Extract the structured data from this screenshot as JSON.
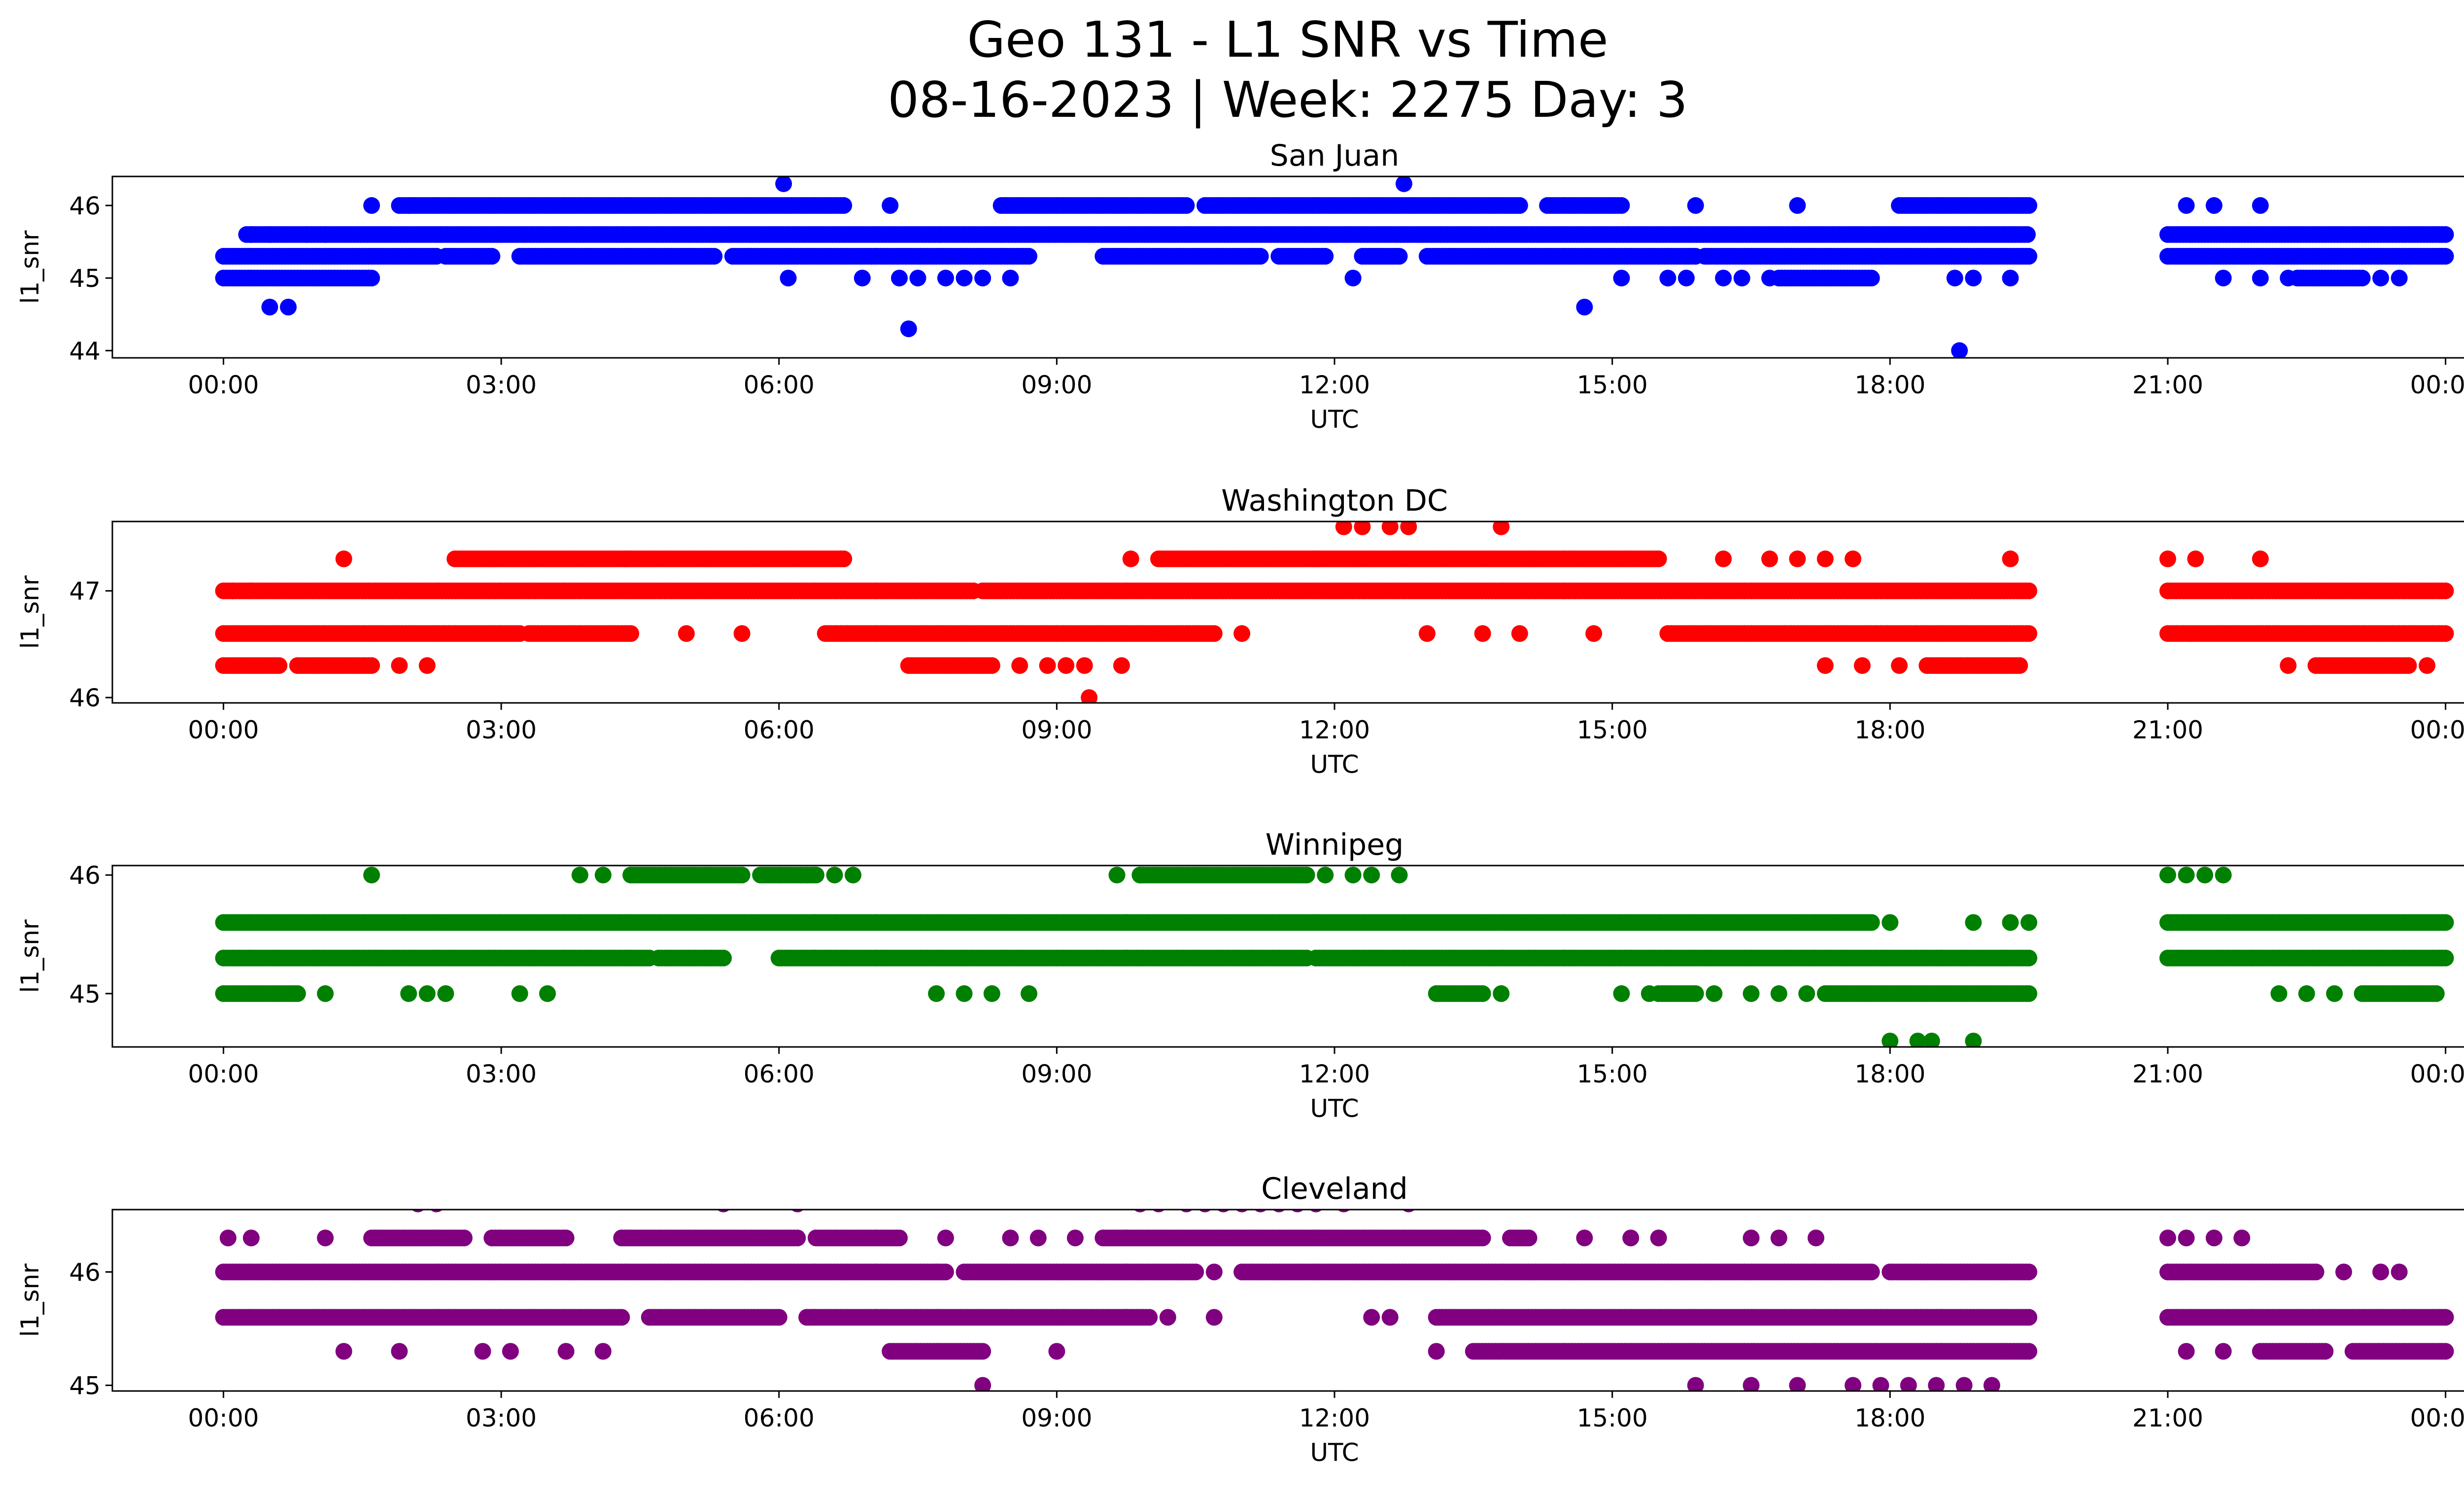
{
  "figure": {
    "title_line1": "Geo 131 - L1 SNR vs Time",
    "title_line2": "08-16-2023 | Week: 2275 Day: 3"
  },
  "chart_data": [
    {
      "type": "scatter",
      "title": "San Juan",
      "xlabel": "UTC",
      "ylabel": "l1_snr",
      "color": "#0000ff",
      "x_ticks": [
        "00:00",
        "03:00",
        "06:00",
        "09:00",
        "12:00",
        "15:00",
        "18:00",
        "21:00",
        "00:00"
      ],
      "y_ticks": [
        44,
        45,
        46
      ],
      "xlim_hours": [
        -1.2,
        25.2
      ],
      "ylim": [
        43.9,
        46.4
      ],
      "bands": [
        {
          "y": 45.6,
          "segments": [
            [
              0.25,
              19.5
            ],
            [
              21.0,
              24.0
            ]
          ],
          "spacing_min": 2
        },
        {
          "y": 45.3,
          "segments": [
            [
              0.0,
              2.3
            ],
            [
              2.4,
              2.9
            ],
            [
              3.2,
              5.3
            ],
            [
              5.5,
              8.7
            ],
            [
              9.5,
              11.2
            ],
            [
              11.4,
              11.9
            ],
            [
              12.3,
              12.7
            ],
            [
              13.0,
              15.9
            ],
            [
              16.0,
              19.5
            ],
            [
              21.0,
              24.0
            ]
          ],
          "spacing_min": 2
        },
        {
          "y": 46.0,
          "segments": [
            [
              1.9,
              6.7
            ],
            [
              8.4,
              10.4
            ],
            [
              10.6,
              14.0
            ],
            [
              14.3,
              15.1
            ],
            [
              18.1,
              19.5
            ]
          ],
          "spacing_min": 2
        },
        {
          "y": 45.0,
          "segments": [
            [
              0.0,
              1.6
            ],
            [
              16.8,
              17.8
            ],
            [
              22.4,
              23.1
            ]
          ],
          "spacing_min": 2
        }
      ],
      "points": [
        [
          0.5,
          44.6
        ],
        [
          0.7,
          44.6
        ],
        [
          1.6,
          46.0
        ],
        [
          2.0,
          46.0
        ],
        [
          6.05,
          46.3
        ],
        [
          12.75,
          46.3
        ],
        [
          7.4,
          44.3
        ],
        [
          14.7,
          44.6
        ],
        [
          18.75,
          44.0
        ],
        [
          6.1,
          45.0
        ],
        [
          6.9,
          45.0
        ],
        [
          7.3,
          45.0
        ],
        [
          7.5,
          45.0
        ],
        [
          7.8,
          45.0
        ],
        [
          8.0,
          45.0
        ],
        [
          8.2,
          45.0
        ],
        [
          8.5,
          45.0
        ],
        [
          12.2,
          45.0
        ],
        [
          15.1,
          45.0
        ],
        [
          15.6,
          45.0
        ],
        [
          15.8,
          45.0
        ],
        [
          16.2,
          45.0
        ],
        [
          16.4,
          45.0
        ],
        [
          16.7,
          45.0
        ],
        [
          18.7,
          45.0
        ],
        [
          18.9,
          45.0
        ],
        [
          19.3,
          45.0
        ],
        [
          21.2,
          46.0
        ],
        [
          21.5,
          46.0
        ],
        [
          22.0,
          46.0
        ],
        [
          21.6,
          45.0
        ],
        [
          22.0,
          45.0
        ],
        [
          22.3,
          45.0
        ],
        [
          23.3,
          45.0
        ],
        [
          23.5,
          45.0
        ],
        [
          15.9,
          46.0
        ],
        [
          17.0,
          46.0
        ],
        [
          7.2,
          46.0
        ],
        [
          0.3,
          45.6
        ],
        [
          0.5,
          45.6
        ],
        [
          0.9,
          45.6
        ],
        [
          1.1,
          45.6
        ]
      ]
    },
    {
      "type": "scatter",
      "title": "Washington DC",
      "xlabel": "UTC",
      "ylabel": "l1_snr",
      "color": "#ff0000",
      "x_ticks": [
        "00:00",
        "03:00",
        "06:00",
        "09:00",
        "12:00",
        "15:00",
        "18:00",
        "21:00",
        "00:00"
      ],
      "y_ticks": [
        46,
        47
      ],
      "xlim_hours": [
        -1.2,
        25.2
      ],
      "ylim": [
        45.95,
        47.65
      ],
      "bands": [
        {
          "y": 47.0,
          "segments": [
            [
              0.0,
              8.1
            ],
            [
              8.2,
              19.5
            ],
            [
              21.0,
              24.0
            ]
          ],
          "spacing_min": 2
        },
        {
          "y": 46.6,
          "segments": [
            [
              0.0,
              3.2
            ],
            [
              3.3,
              4.4
            ],
            [
              6.5,
              10.7
            ],
            [
              15.6,
              19.5
            ],
            [
              21.0,
              24.0
            ]
          ],
          "spacing_min": 2
        },
        {
          "y": 47.3,
          "segments": [
            [
              2.5,
              6.7
            ],
            [
              10.1,
              15.5
            ]
          ],
          "spacing_min": 2
        },
        {
          "y": 46.3,
          "segments": [
            [
              0.0,
              0.6
            ],
            [
              0.8,
              1.6
            ],
            [
              7.4,
              8.3
            ],
            [
              18.4,
              19.4
            ],
            [
              22.6,
              23.6
            ]
          ],
          "spacing_min": 2
        }
      ],
      "points": [
        [
          1.3,
          47.3
        ],
        [
          9.35,
          46.0
        ],
        [
          12.1,
          47.6
        ],
        [
          12.3,
          47.6
        ],
        [
          12.6,
          47.6
        ],
        [
          12.8,
          47.6
        ],
        [
          13.8,
          47.6
        ],
        [
          0.1,
          47.0
        ],
        [
          0.3,
          47.0
        ],
        [
          1.9,
          46.3
        ],
        [
          2.2,
          46.3
        ],
        [
          8.6,
          46.3
        ],
        [
          8.9,
          46.3
        ],
        [
          9.1,
          46.3
        ],
        [
          9.3,
          46.3
        ],
        [
          9.7,
          46.3
        ],
        [
          17.3,
          46.3
        ],
        [
          17.7,
          46.3
        ],
        [
          18.1,
          46.3
        ],
        [
          13.0,
          46.6
        ],
        [
          13.6,
          46.6
        ],
        [
          14.0,
          46.6
        ],
        [
          14.8,
          46.6
        ],
        [
          5.0,
          46.6
        ],
        [
          5.6,
          46.6
        ],
        [
          11.0,
          46.6
        ],
        [
          9.8,
          47.3
        ],
        [
          16.2,
          47.3
        ],
        [
          16.7,
          47.3
        ],
        [
          17.0,
          47.3
        ],
        [
          17.3,
          47.3
        ],
        [
          17.6,
          47.3
        ],
        [
          19.3,
          47.3
        ],
        [
          21.0,
          47.3
        ],
        [
          21.3,
          47.3
        ],
        [
          22.0,
          47.3
        ],
        [
          23.8,
          46.3
        ],
        [
          22.3,
          46.3
        ]
      ]
    },
    {
      "type": "scatter",
      "title": "Winnipeg",
      "xlabel": "UTC",
      "ylabel": "l1_snr",
      "color": "#008000",
      "x_ticks": [
        "00:00",
        "03:00",
        "06:00",
        "09:00",
        "12:00",
        "15:00",
        "18:00",
        "21:00",
        "00:00"
      ],
      "y_ticks": [
        45,
        46
      ],
      "xlim_hours": [
        -1.2,
        25.2
      ],
      "ylim": [
        44.55,
        46.08
      ],
      "bands": [
        {
          "y": 45.6,
          "segments": [
            [
              0.0,
              17.8
            ],
            [
              21.0,
              24.0
            ]
          ],
          "spacing_min": 2
        },
        {
          "y": 45.3,
          "segments": [
            [
              0.0,
              4.6
            ],
            [
              4.7,
              5.4
            ],
            [
              6.0,
              11.7
            ],
            [
              11.8,
              19.5
            ],
            [
              21.0,
              24.0
            ]
          ],
          "spacing_min": 2
        },
        {
          "y": 46.0,
          "segments": [
            [
              4.4,
              5.6
            ],
            [
              5.8,
              6.4
            ],
            [
              9.9,
              11.7
            ]
          ],
          "spacing_min": 2
        },
        {
          "y": 45.0,
          "segments": [
            [
              0.0,
              0.8
            ],
            [
              13.1,
              13.6
            ],
            [
              15.5,
              15.9
            ],
            [
              17.3,
              19.5
            ],
            [
              23.1,
              23.9
            ]
          ],
          "spacing_min": 2
        }
      ],
      "points": [
        [
          1.6,
          46.0
        ],
        [
          3.85,
          46.0
        ],
        [
          4.1,
          46.0
        ],
        [
          6.0,
          46.0
        ],
        [
          6.3,
          46.0
        ],
        [
          6.6,
          46.0
        ],
        [
          6.8,
          46.0
        ],
        [
          9.65,
          46.0
        ],
        [
          9.9,
          46.0
        ],
        [
          11.9,
          46.0
        ],
        [
          12.2,
          46.0
        ],
        [
          12.4,
          46.0
        ],
        [
          12.7,
          46.0
        ],
        [
          21.0,
          46.0
        ],
        [
          21.2,
          46.0
        ],
        [
          21.4,
          46.0
        ],
        [
          21.6,
          46.0
        ],
        [
          1.1,
          45.0
        ],
        [
          2.0,
          45.0
        ],
        [
          2.2,
          45.0
        ],
        [
          2.4,
          45.0
        ],
        [
          3.2,
          45.0
        ],
        [
          3.5,
          45.0
        ],
        [
          7.7,
          45.0
        ],
        [
          8.0,
          45.0
        ],
        [
          8.3,
          45.0
        ],
        [
          8.7,
          45.0
        ],
        [
          13.8,
          45.0
        ],
        [
          15.1,
          45.0
        ],
        [
          15.4,
          45.0
        ],
        [
          16.1,
          45.0
        ],
        [
          16.5,
          45.0
        ],
        [
          16.8,
          45.0
        ],
        [
          17.1,
          45.0
        ],
        [
          22.2,
          45.0
        ],
        [
          22.5,
          45.0
        ],
        [
          22.8,
          45.0
        ],
        [
          18.0,
          44.6
        ],
        [
          18.3,
          44.6
        ],
        [
          18.45,
          44.6
        ],
        [
          18.9,
          44.6
        ],
        [
          18.9,
          45.6
        ],
        [
          19.3,
          45.6
        ],
        [
          19.5,
          45.6
        ],
        [
          18.0,
          45.6
        ]
      ]
    },
    {
      "type": "scatter",
      "title": "Cleveland",
      "xlabel": "UTC",
      "ylabel": "l1_snr",
      "color": "#800080",
      "x_ticks": [
        "00:00",
        "03:00",
        "06:00",
        "09:00",
        "12:00",
        "15:00",
        "18:00",
        "21:00",
        "00:00"
      ],
      "y_ticks": [
        45,
        46
      ],
      "xlim_hours": [
        -1.2,
        25.2
      ],
      "ylim": [
        44.95,
        46.55
      ],
      "bands": [
        {
          "y": 46.0,
          "segments": [
            [
              0.0,
              7.8
            ],
            [
              8.0,
              10.5
            ],
            [
              11.0,
              17.8
            ],
            [
              18.0,
              19.5
            ],
            [
              21.0,
              22.6
            ]
          ],
          "spacing_min": 2
        },
        {
          "y": 45.6,
          "segments": [
            [
              0.0,
              4.3
            ],
            [
              4.6,
              6.0
            ],
            [
              6.3,
              10.0
            ],
            [
              13.1,
              19.5
            ],
            [
              21.0,
              24.0
            ]
          ],
          "spacing_min": 2
        },
        {
          "y": 46.3,
          "segments": [
            [
              1.6,
              2.6
            ],
            [
              2.9,
              3.7
            ],
            [
              4.3,
              6.2
            ],
            [
              6.4,
              7.3
            ],
            [
              9.5,
              13.6
            ],
            [
              13.9,
              14.1
            ]
          ],
          "spacing_min": 2
        },
        {
          "y": 45.3,
          "segments": [
            [
              7.2,
              8.2
            ],
            [
              13.5,
              19.5
            ],
            [
              22.0,
              22.7
            ],
            [
              23.0,
              24.0
            ]
          ],
          "spacing_min": 2
        }
      ],
      "points": [
        [
          2.1,
          46.6
        ],
        [
          2.3,
          46.6
        ],
        [
          5.4,
          46.6
        ],
        [
          6.2,
          46.6
        ],
        [
          9.9,
          46.6
        ],
        [
          10.1,
          46.6
        ],
        [
          10.4,
          46.6
        ],
        [
          10.6,
          46.6
        ],
        [
          10.8,
          46.6
        ],
        [
          11.0,
          46.6
        ],
        [
          11.2,
          46.6
        ],
        [
          11.4,
          46.6
        ],
        [
          11.6,
          46.6
        ],
        [
          11.8,
          46.6
        ],
        [
          12.1,
          46.6
        ],
        [
          12.8,
          46.6
        ],
        [
          8.2,
          45.0
        ],
        [
          15.9,
          45.0
        ],
        [
          16.5,
          45.0
        ],
        [
          17.0,
          45.0
        ],
        [
          17.6,
          45.0
        ],
        [
          17.9,
          45.0
        ],
        [
          18.2,
          45.0
        ],
        [
          18.5,
          45.0
        ],
        [
          18.8,
          45.0
        ],
        [
          19.1,
          45.0
        ],
        [
          1.3,
          45.3
        ],
        [
          1.9,
          45.3
        ],
        [
          2.8,
          45.3
        ],
        [
          3.1,
          45.3
        ],
        [
          3.7,
          45.3
        ],
        [
          4.1,
          45.3
        ],
        [
          9.0,
          45.3
        ],
        [
          13.1,
          45.3
        ],
        [
          0.05,
          46.3
        ],
        [
          0.3,
          46.3
        ],
        [
          1.1,
          46.3
        ],
        [
          7.8,
          46.3
        ],
        [
          8.5,
          46.3
        ],
        [
          8.8,
          46.3
        ],
        [
          9.2,
          46.3
        ],
        [
          14.7,
          46.3
        ],
        [
          15.2,
          46.3
        ],
        [
          15.5,
          46.3
        ],
        [
          16.5,
          46.3
        ],
        [
          16.8,
          46.3
        ],
        [
          17.2,
          46.3
        ],
        [
          21.0,
          46.3
        ],
        [
          21.2,
          46.3
        ],
        [
          21.5,
          46.3
        ],
        [
          21.8,
          46.3
        ],
        [
          22.9,
          46.0
        ],
        [
          23.3,
          46.0
        ],
        [
          23.5,
          46.0
        ],
        [
          10.2,
          45.6
        ],
        [
          10.7,
          45.6
        ],
        [
          12.4,
          45.6
        ],
        [
          12.6,
          45.6
        ],
        [
          7.7,
          46.0
        ],
        [
          10.7,
          46.0
        ],
        [
          21.2,
          45.3
        ],
        [
          21.6,
          45.3
        ]
      ]
    }
  ]
}
